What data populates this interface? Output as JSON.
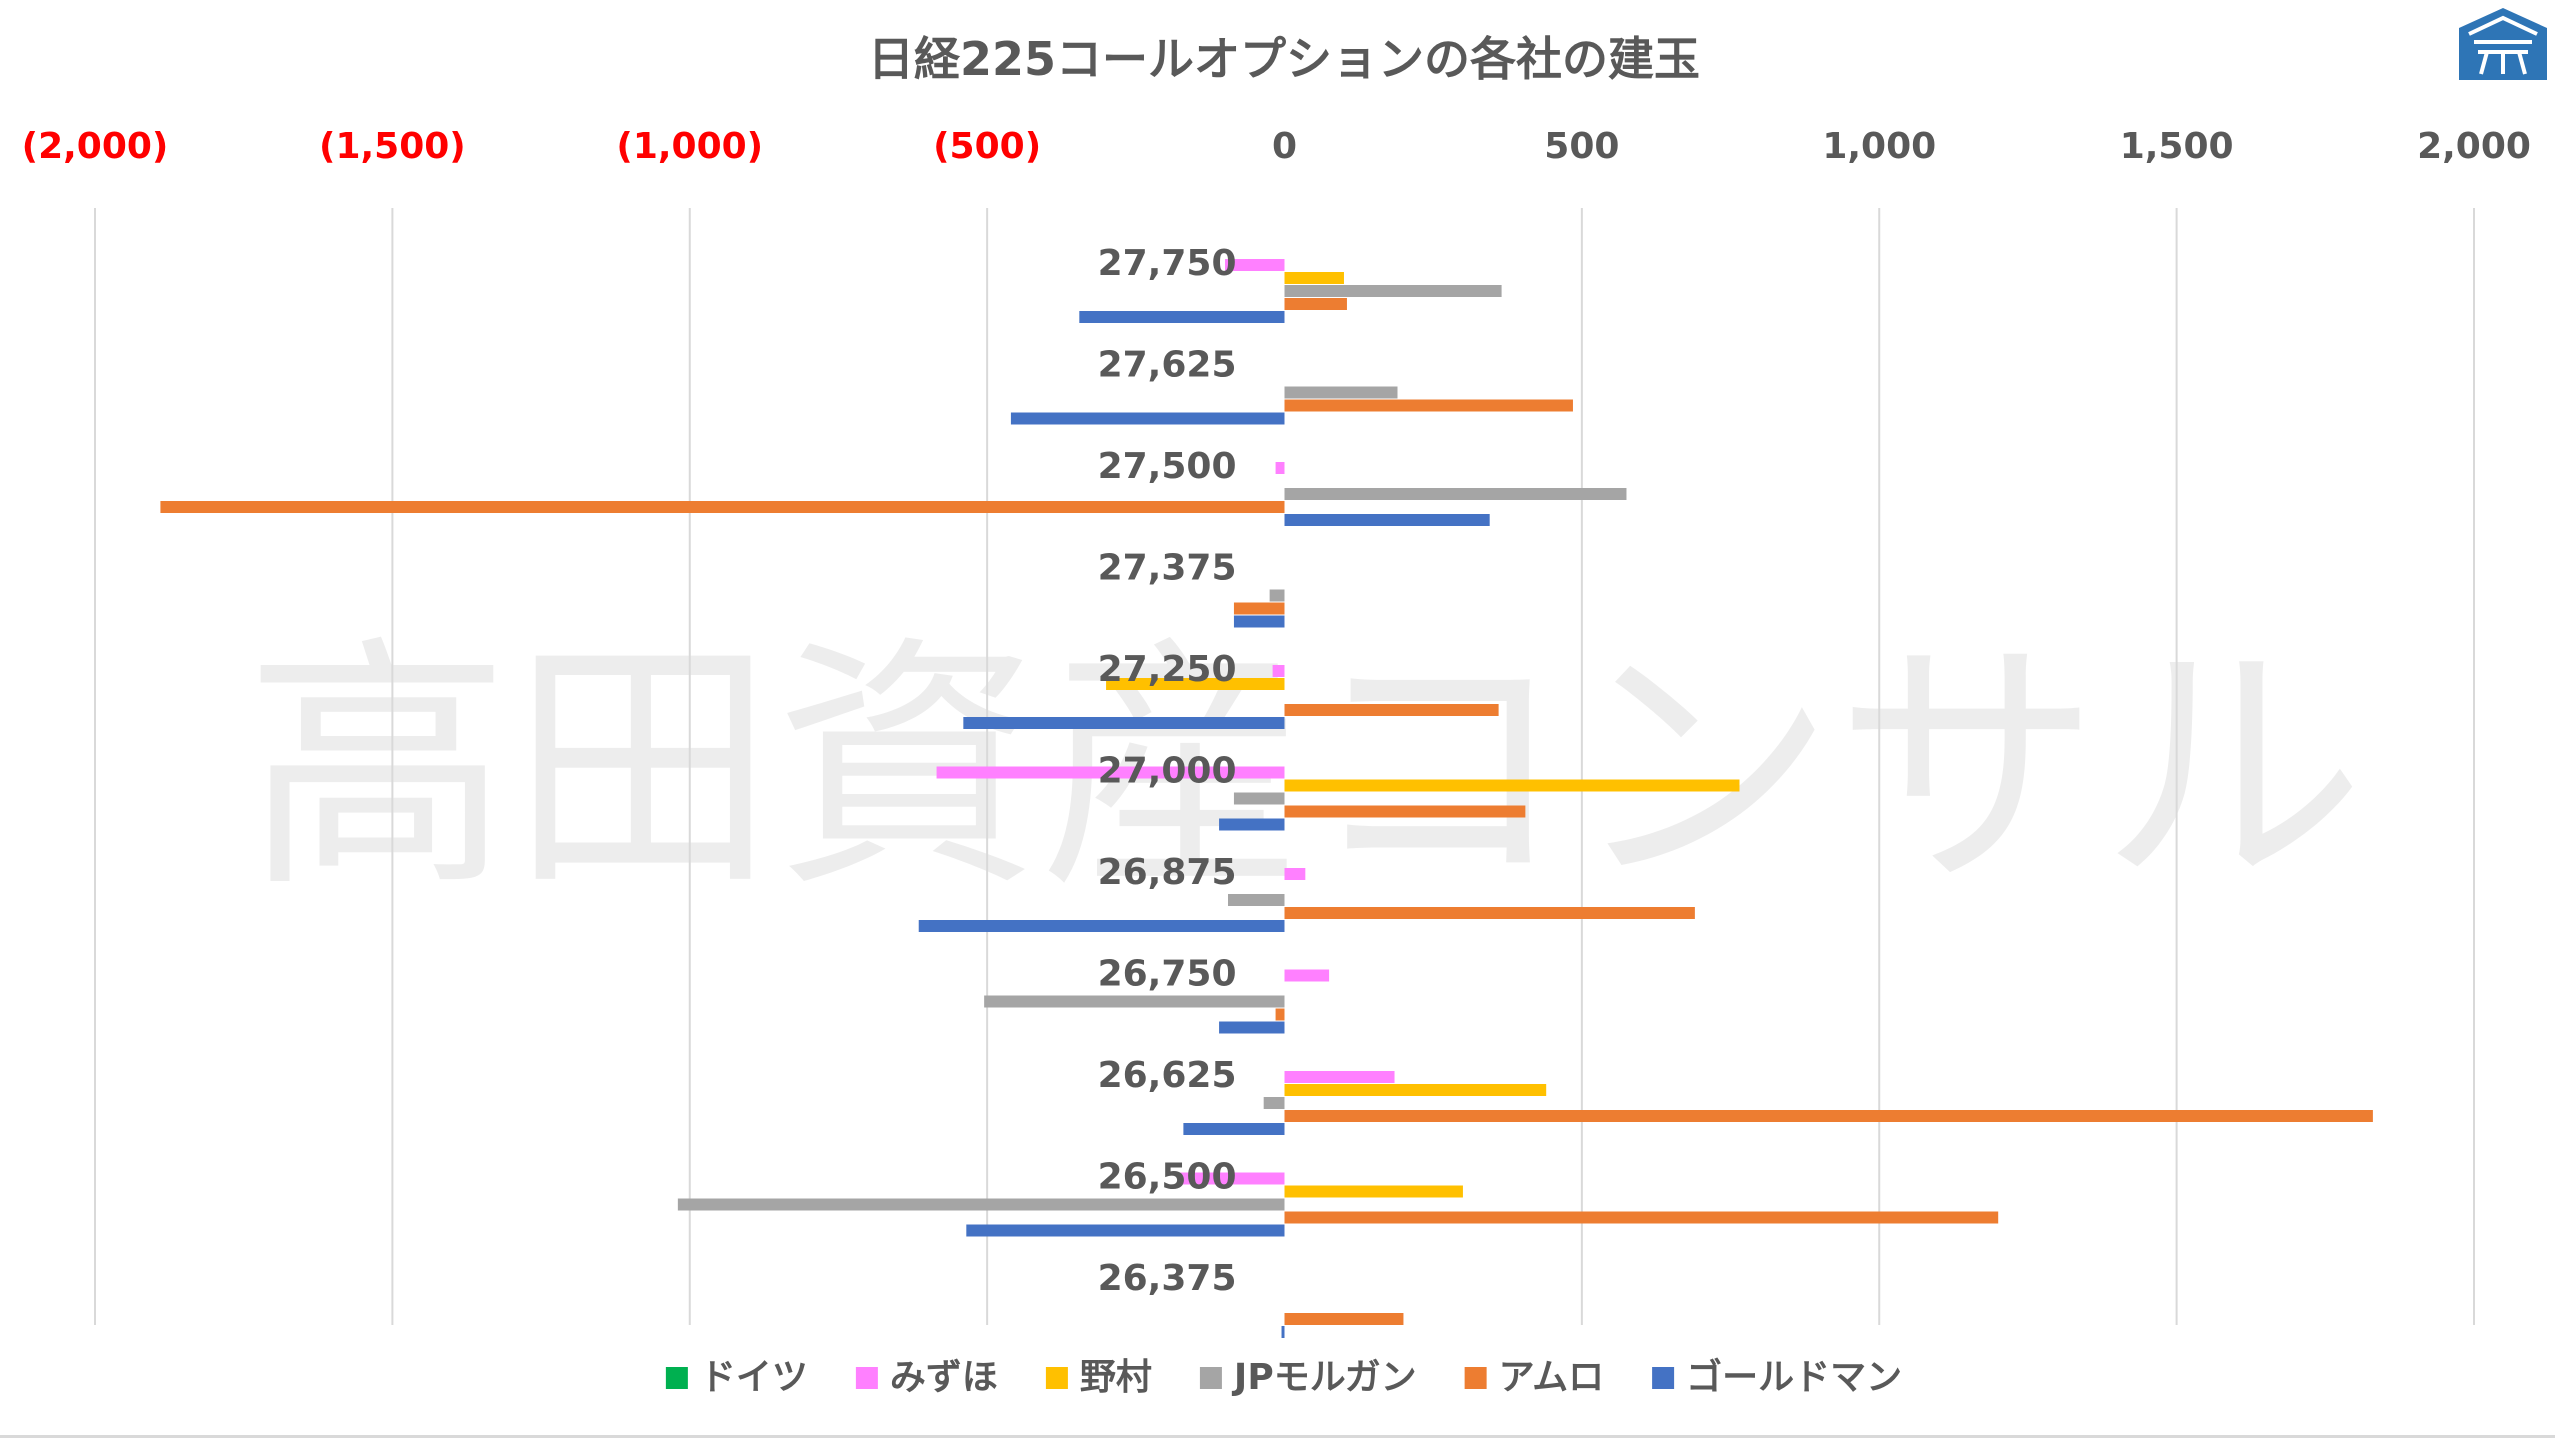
{
  "chart_data": {
    "type": "bar",
    "orientation": "horizontal",
    "title": "日経225コールオプションの各社の建玉",
    "watermark": "高田資産コンサル",
    "xlim": [
      -2000,
      2000
    ],
    "x_ticks": [
      {
        "value": -2000,
        "label": "(2,000)"
      },
      {
        "value": -1500,
        "label": "(1,500)"
      },
      {
        "value": -1000,
        "label": "(1,000)"
      },
      {
        "value": -500,
        "label": "(500)"
      },
      {
        "value": 0,
        "label": "0"
      },
      {
        "value": 500,
        "label": "500"
      },
      {
        "value": 1000,
        "label": "1,000"
      },
      {
        "value": 1500,
        "label": "1,500"
      },
      {
        "value": 2000,
        "label": "2,000"
      }
    ],
    "categories": [
      "27,750",
      "27,625",
      "27,500",
      "27,375",
      "27,250",
      "27,000",
      "26,875",
      "26,750",
      "26,625",
      "26,500",
      "26,375"
    ],
    "series": [
      {
        "name": "ドイツ",
        "color": "#00b050",
        "values": [
          0,
          0,
          0,
          0,
          0,
          0,
          0,
          0,
          0,
          0,
          0
        ]
      },
      {
        "name": "みずほ",
        "color": "#ff80ff",
        "values": [
          -100,
          0,
          -15,
          0,
          -20,
          -585,
          35,
          75,
          185,
          -180,
          0
        ]
      },
      {
        "name": "野村",
        "color": "#ffc000",
        "values": [
          100,
          0,
          0,
          0,
          -300,
          765,
          0,
          0,
          440,
          300,
          0
        ]
      },
      {
        "name": "JPモルガン",
        "color": "#a5a5a5",
        "values": [
          365,
          190,
          575,
          -25,
          0,
          -85,
          -95,
          -505,
          -35,
          -1020,
          0
        ]
      },
      {
        "name": "アムロ",
        "color": "#ed7d31",
        "values": [
          105,
          485,
          -1890,
          -85,
          360,
          405,
          690,
          -15,
          1830,
          1200,
          200
        ]
      },
      {
        "name": "ゴールドマン",
        "color": "#4472c4",
        "values": [
          -345,
          -460,
          345,
          -85,
          -540,
          -110,
          -615,
          -110,
          -170,
          -535,
          -5
        ]
      }
    ]
  }
}
